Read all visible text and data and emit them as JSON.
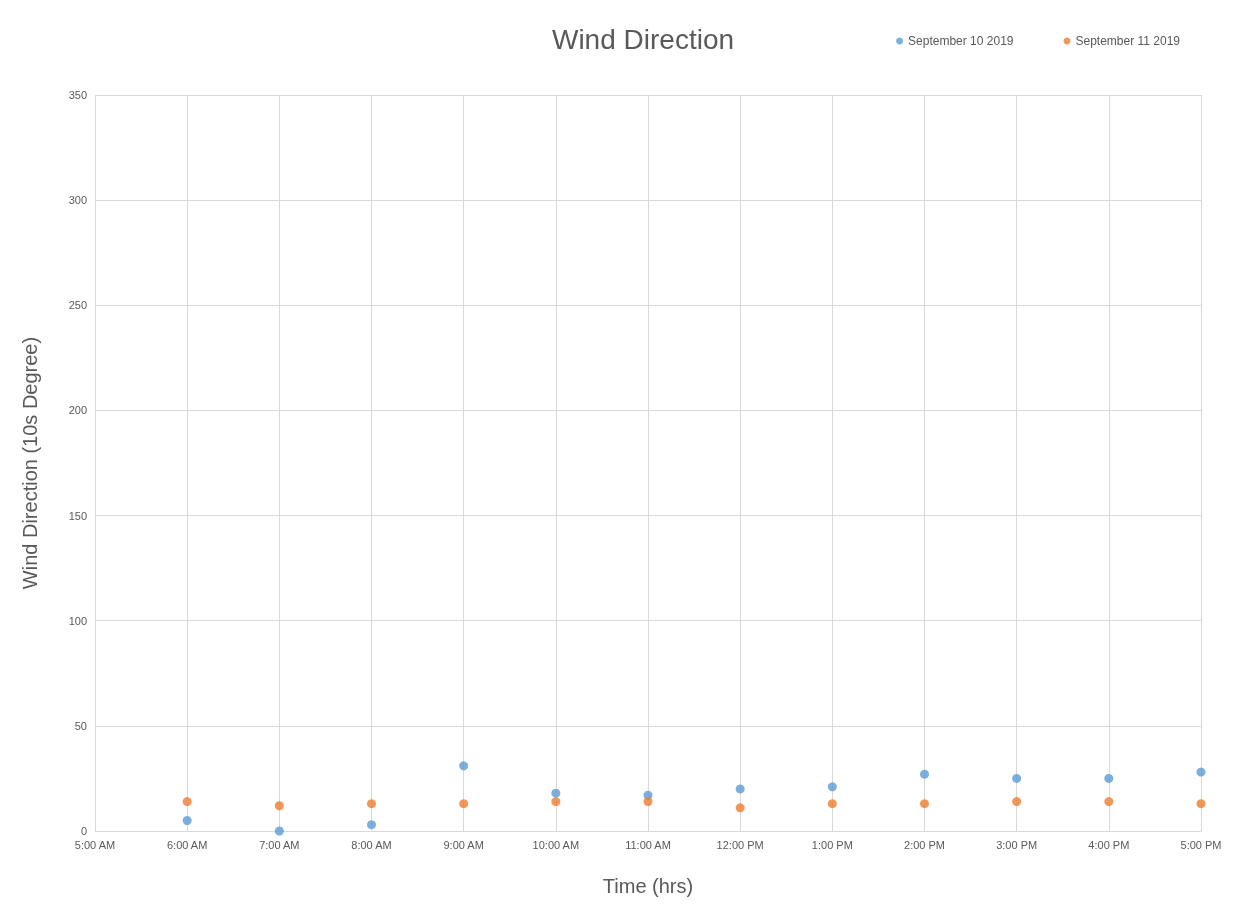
{
  "chart_data": {
    "type": "scatter",
    "title": "Wind Direction",
    "xlabel": "Time (hrs)",
    "ylabel": "Wind Direction (10s Degree)",
    "x": [
      6,
      7,
      8,
      9,
      10,
      11,
      12,
      13,
      14,
      15,
      16,
      17
    ],
    "series": [
      {
        "name": "September 10 2019",
        "color": "#5b9bd5",
        "values": [
          5,
          0,
          3,
          31,
          18,
          17,
          20,
          21,
          27,
          25,
          25,
          28
        ]
      },
      {
        "name": "September 11 2019",
        "color": "#ed7d31",
        "values": [
          14,
          12,
          13,
          13,
          14,
          14,
          11,
          13,
          13,
          14,
          14,
          13
        ]
      }
    ],
    "xlim": [
      5,
      17
    ],
    "xticks": [
      {
        "value": 5,
        "label": "5:00 AM"
      },
      {
        "value": 6,
        "label": "6:00 AM"
      },
      {
        "value": 7,
        "label": "7:00 AM"
      },
      {
        "value": 8,
        "label": "8:00 AM"
      },
      {
        "value": 9,
        "label": "9:00 AM"
      },
      {
        "value": 10,
        "label": "10:00 AM"
      },
      {
        "value": 11,
        "label": "11:00 AM"
      },
      {
        "value": 12,
        "label": "12:00 PM"
      },
      {
        "value": 13,
        "label": "1:00 PM"
      },
      {
        "value": 14,
        "label": "2:00 PM"
      },
      {
        "value": 15,
        "label": "3:00 PM"
      },
      {
        "value": 16,
        "label": "4:00 PM"
      },
      {
        "value": 17,
        "label": "5:00 PM"
      }
    ],
    "ylim": [
      0,
      350
    ],
    "yticks": [
      0,
      50,
      100,
      150,
      200,
      250,
      300,
      350
    ],
    "grid": true,
    "legend": "top right",
    "marker": "circle"
  }
}
